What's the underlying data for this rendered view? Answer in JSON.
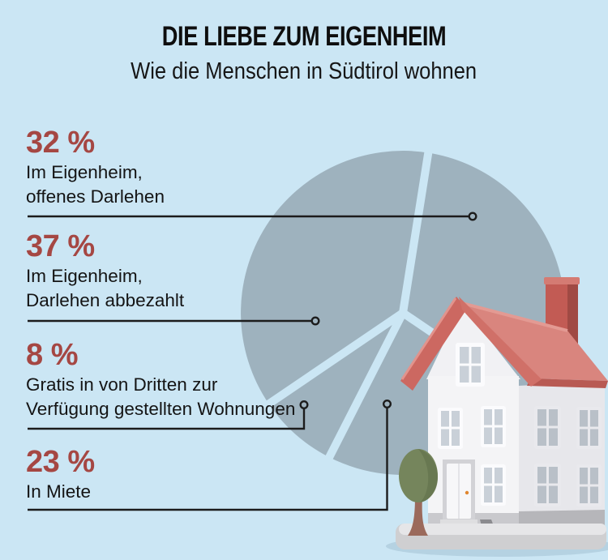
{
  "header": {
    "title": "DIE LIEBE ZUM EIGENHEIM",
    "subtitle": "Wie die Menschen in Südtirol wohnen"
  },
  "colors": {
    "background": "#cbe6f4",
    "pie_slice": "#9eb2be",
    "accent_red": "#a54743",
    "text": "#141414",
    "leader_line": "#1c1c1c"
  },
  "chart_data": {
    "type": "pie",
    "title": "DIE LIEBE ZUM EIGENHEIM",
    "subtitle": "Wie die Menschen in Südtirol wohnen",
    "unit": "%",
    "rotation_deg": 9,
    "clockwise": true,
    "slice_color": "#9eb2be",
    "separator_color": "#cbe6f4",
    "legend_position": "left",
    "slices": [
      {
        "label": "Im Eigenheim, offenes Darlehen",
        "value": 32
      },
      {
        "label": "In Miete",
        "value": 23
      },
      {
        "label": "Gratis in von Dritten zur Verfügung gestellten Wohnungen",
        "value": 8
      },
      {
        "label": "Im Eigenheim, Darlehen abbezahlt",
        "value": 37
      }
    ]
  },
  "callouts": [
    {
      "percent": "32 %",
      "lines": [
        "Im Eigenheim,",
        "offenes Darlehen"
      ]
    },
    {
      "percent": "37 %",
      "lines": [
        "Im Eigenheim,",
        "Darlehen abbezahlt"
      ]
    },
    {
      "percent": "8 %",
      "lines": [
        "Gratis in von Dritten zur",
        "Verfügung gestellten Wohnungen"
      ]
    },
    {
      "percent": "23 %",
      "lines": [
        "In Miete"
      ]
    }
  ],
  "illustration": {
    "name": "3d-house-with-tree"
  }
}
